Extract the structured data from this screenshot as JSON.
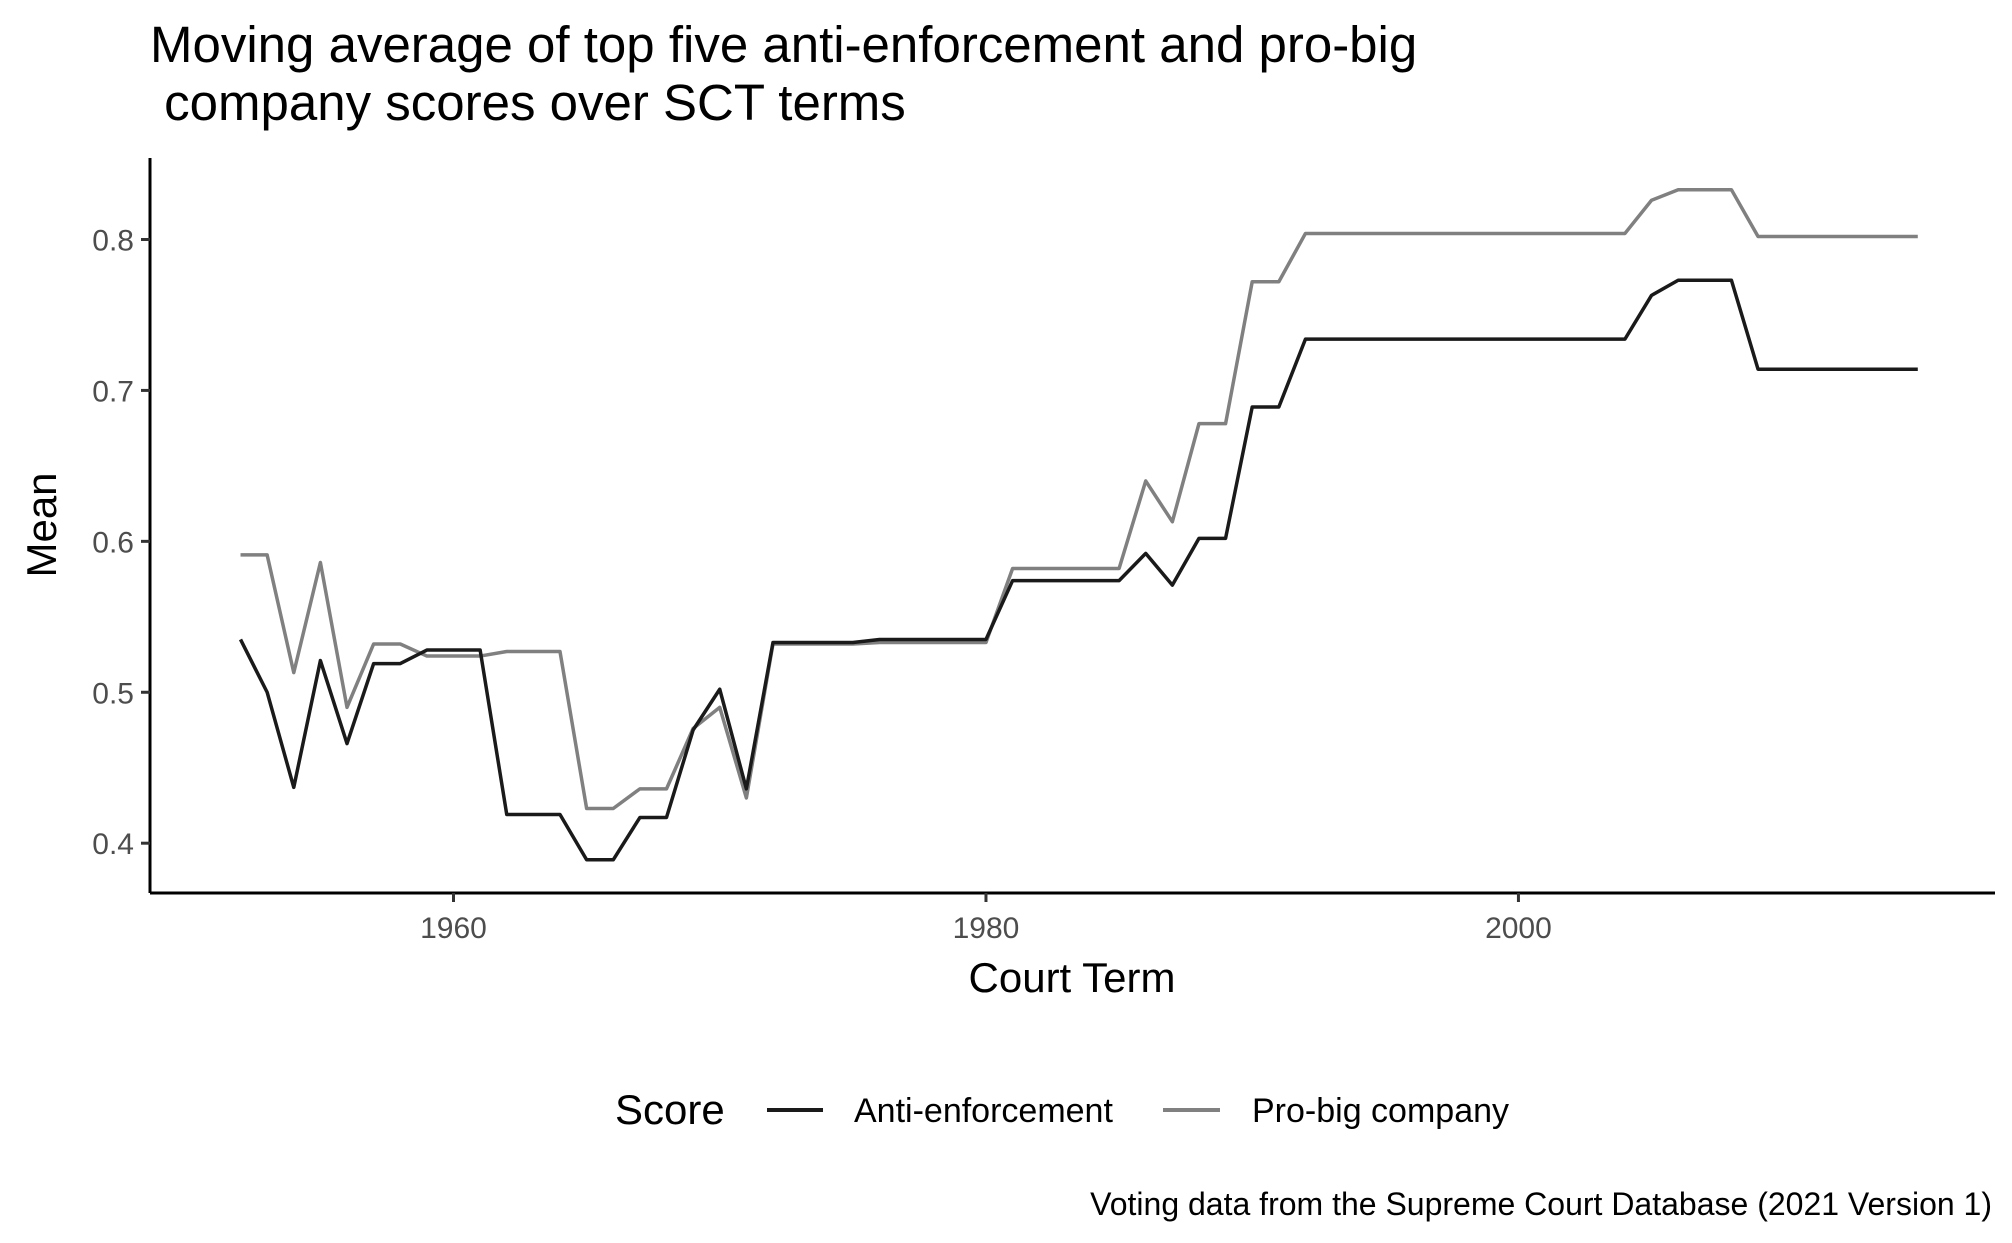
{
  "chart_data": {
    "type": "line",
    "title_lines": [
      "Moving average of top five anti-enforcement and pro-big",
      " company scores over SCT terms"
    ],
    "xlabel": "Court Term",
    "ylabel": "Mean",
    "caption": "Voting data from the Supreme Court Database (2021 Version 1)",
    "legend": {
      "title": "Score",
      "position": "bottom"
    },
    "xlim": [
      1948.6,
      2017.9
    ],
    "ylim": [
      0.367,
      0.854
    ],
    "x_ticks": [
      1960,
      1980,
      2000
    ],
    "y_ticks": [
      0.4,
      0.5,
      0.6,
      0.7,
      0.8
    ],
    "x_tick_labels": [
      "1960",
      "1980",
      "2000"
    ],
    "y_tick_labels": [
      "0.4",
      "0.5",
      "0.6",
      "0.7",
      "0.8"
    ],
    "grid": false,
    "x": [
      1952,
      1953,
      1954,
      1955,
      1956,
      1957,
      1958,
      1959,
      1960,
      1961,
      1962,
      1963,
      1964,
      1965,
      1966,
      1967,
      1968,
      1969,
      1970,
      1971,
      1972,
      1973,
      1974,
      1975,
      1976,
      1977,
      1978,
      1979,
      1980,
      1981,
      1982,
      1983,
      1984,
      1985,
      1986,
      1987,
      1988,
      1989,
      1990,
      1991,
      1992,
      1993,
      1994,
      1995,
      1996,
      1997,
      1998,
      1999,
      2000,
      2001,
      2002,
      2003,
      2004,
      2005,
      2006,
      2007,
      2008,
      2009,
      2010,
      2011,
      2012,
      2013,
      2014,
      2015
    ],
    "series": [
      {
        "name": "Anti-enforcement",
        "color": "#1a1a1a",
        "values": [
          0.535,
          0.5,
          0.437,
          0.521,
          0.466,
          0.519,
          0.519,
          0.528,
          0.528,
          0.528,
          0.419,
          0.419,
          0.419,
          0.389,
          0.389,
          0.417,
          0.417,
          0.475,
          0.502,
          0.436,
          0.533,
          0.533,
          0.533,
          0.533,
          0.535,
          0.535,
          0.535,
          0.535,
          0.535,
          0.574,
          0.574,
          0.574,
          0.574,
          0.574,
          0.592,
          0.571,
          0.602,
          0.602,
          0.689,
          0.689,
          0.734,
          0.734,
          0.734,
          0.734,
          0.734,
          0.734,
          0.734,
          0.734,
          0.734,
          0.734,
          0.734,
          0.734,
          0.734,
          0.763,
          0.773,
          0.773,
          0.773,
          0.714,
          0.714,
          0.714,
          0.714,
          0.714,
          0.714,
          0.714
        ]
      },
      {
        "name": "Pro-big company",
        "color": "#808080",
        "values": [
          0.591,
          0.591,
          0.513,
          0.586,
          0.49,
          0.532,
          0.532,
          0.524,
          0.524,
          0.524,
          0.527,
          0.527,
          0.527,
          0.423,
          0.423,
          0.436,
          0.436,
          0.476,
          0.49,
          0.43,
          0.532,
          0.532,
          0.532,
          0.532,
          0.533,
          0.533,
          0.533,
          0.533,
          0.533,
          0.582,
          0.582,
          0.582,
          0.582,
          0.582,
          0.64,
          0.613,
          0.678,
          0.678,
          0.772,
          0.772,
          0.804,
          0.804,
          0.804,
          0.804,
          0.804,
          0.804,
          0.804,
          0.804,
          0.804,
          0.804,
          0.804,
          0.804,
          0.804,
          0.826,
          0.833,
          0.833,
          0.833,
          0.802,
          0.802,
          0.802,
          0.802,
          0.802,
          0.802,
          0.802
        ]
      }
    ]
  }
}
